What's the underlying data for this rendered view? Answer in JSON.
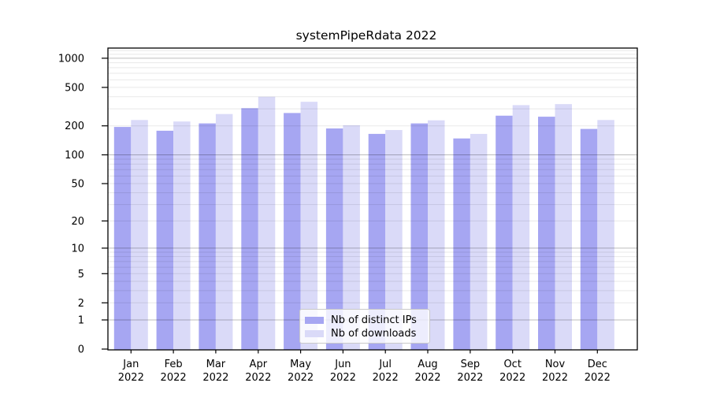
{
  "chart_data": {
    "type": "bar",
    "title": "systemPipeRdata 2022",
    "xlabel": "",
    "ylabel": "",
    "categories": [
      "Jan",
      "Feb",
      "Mar",
      "Apr",
      "May",
      "Jun",
      "Jul",
      "Aug",
      "Sep",
      "Oct",
      "Nov",
      "Dec"
    ],
    "year_suffix": "2022",
    "series": [
      {
        "name": "Nb of distinct IPs",
        "color": "#a6a6f2",
        "values": [
          195,
          178,
          212,
          305,
          272,
          188,
          165,
          212,
          148,
          255,
          249,
          186
        ]
      },
      {
        "name": "Nb of downloads",
        "color": "#dadaf8",
        "values": [
          230,
          222,
          265,
          400,
          355,
          203,
          181,
          228,
          165,
          328,
          336,
          230
        ]
      }
    ],
    "yscale": "log1p",
    "ylim": [
      0,
      1275
    ],
    "ytick_labels": [
      "0",
      "1",
      "2",
      "5",
      "10",
      "20",
      "50",
      "100",
      "200",
      "500",
      "1000"
    ],
    "grid": {
      "on": true,
      "major_values": [
        1,
        10,
        100,
        1000
      ],
      "minor_values": [
        2,
        3,
        4,
        5,
        6,
        7,
        8,
        9,
        20,
        30,
        40,
        50,
        60,
        70,
        80,
        90,
        200,
        300,
        400,
        500,
        600,
        700,
        800,
        900,
        1100,
        1200
      ]
    },
    "legend": {
      "position": "lower center",
      "entries": [
        "Nb of distinct IPs",
        "Nb of downloads"
      ]
    }
  }
}
